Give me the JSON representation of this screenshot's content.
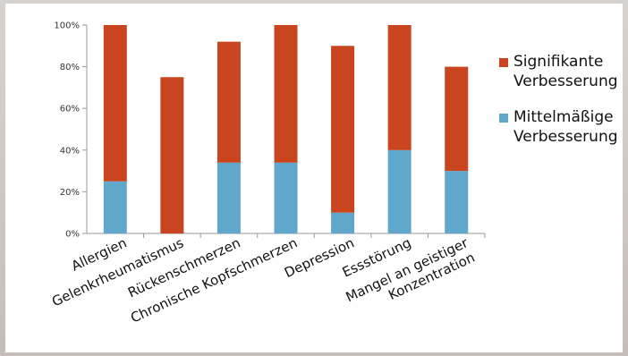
{
  "chart_data": {
    "type": "bar",
    "stacked": true,
    "categories": [
      "Allergien",
      "Gelenkrheumatismus",
      "Rückenschmerzen",
      "Chronische Kopfschmerzen",
      "Depression",
      "Essstörung",
      "Mangel an geistiger Konzentration"
    ],
    "series": [
      {
        "name": "Mittelmäßige Verbesserung",
        "values": [
          25,
          0,
          34,
          34,
          10,
          40,
          30
        ],
        "color": "#5fa8cc"
      },
      {
        "name": "Signifikante Verbesserung",
        "values": [
          75,
          75,
          58,
          66,
          80,
          60,
          50
        ],
        "color": "#c8451f"
      }
    ],
    "ylim": [
      0,
      100
    ],
    "yticks": [
      "0%",
      "20%",
      "40%",
      "60%",
      "80%",
      "100%"
    ],
    "legend": {
      "position": "right",
      "items": [
        {
          "line1": "Signifikante",
          "line2": "Verbesserung",
          "color": "#c8451f"
        },
        {
          "line1": "Mittelmäßige",
          "line2": "Verbesserung",
          "color": "#5fa8cc"
        }
      ]
    },
    "grid": false
  }
}
